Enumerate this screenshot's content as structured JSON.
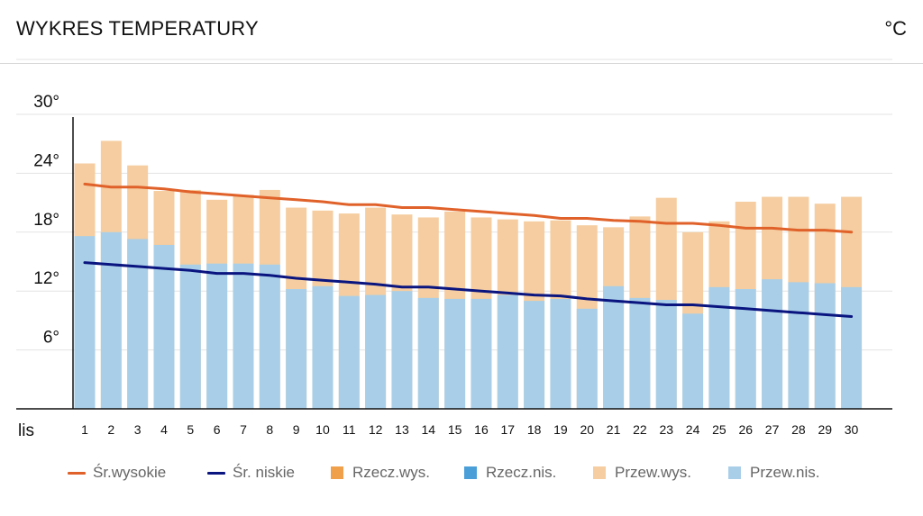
{
  "header": {
    "title": "WYKRES TEMPERATURY",
    "unit": "°C"
  },
  "chart_data": {
    "type": "bar",
    "x_label": "lis",
    "categories": [
      "1",
      "2",
      "3",
      "4",
      "5",
      "6",
      "7",
      "8",
      "9",
      "10",
      "11",
      "12",
      "13",
      "14",
      "15",
      "16",
      "17",
      "18",
      "19",
      "20",
      "21",
      "22",
      "23",
      "24",
      "25",
      "26",
      "27",
      "28",
      "29",
      "30"
    ],
    "ylim": [
      0,
      30
    ],
    "y_ticks": [
      {
        "value": 6,
        "label": "6°"
      },
      {
        "value": 12,
        "label": "12°"
      },
      {
        "value": 18,
        "label": "18°"
      },
      {
        "value": 24,
        "label": "24°"
      },
      {
        "value": 30,
        "label": "30°"
      }
    ],
    "grid": true,
    "legend_position": "bottom",
    "series": [
      {
        "name": "Przew.wys.",
        "kind": "bar",
        "color": "#f5cda0",
        "values": [
          25.0,
          27.3,
          24.8,
          22.2,
          22.3,
          21.3,
          21.8,
          22.3,
          20.5,
          20.2,
          19.9,
          20.5,
          19.8,
          19.5,
          20.1,
          19.5,
          19.3,
          19.1,
          19.2,
          18.7,
          18.5,
          19.6,
          21.5,
          18.0,
          19.1,
          21.1,
          21.6,
          21.6,
          20.9,
          21.6
        ]
      },
      {
        "name": "Przew.nis.",
        "kind": "bar",
        "color": "#a9cfe8",
        "values": [
          17.6,
          18.0,
          17.3,
          16.7,
          14.7,
          14.8,
          14.8,
          14.7,
          12.2,
          12.5,
          11.5,
          11.6,
          12.0,
          11.3,
          11.2,
          11.2,
          11.6,
          11.0,
          11.2,
          10.2,
          12.5,
          11.3,
          11.1,
          9.7,
          12.4,
          12.2,
          13.2,
          12.9,
          12.8,
          12.4
        ]
      },
      {
        "name": "Śr.wysokie",
        "kind": "line",
        "color": "#e0622a",
        "values": [
          22.9,
          22.6,
          22.6,
          22.4,
          22.1,
          21.9,
          21.7,
          21.5,
          21.3,
          21.1,
          20.8,
          20.8,
          20.5,
          20.5,
          20.3,
          20.1,
          19.9,
          19.7,
          19.4,
          19.4,
          19.2,
          19.1,
          18.9,
          18.9,
          18.7,
          18.4,
          18.4,
          18.2,
          18.2,
          18.0
        ]
      },
      {
        "name": "Śr. niskie",
        "kind": "line",
        "color": "#0a1580",
        "values": [
          14.9,
          14.7,
          14.5,
          14.3,
          14.1,
          13.8,
          13.8,
          13.6,
          13.3,
          13.1,
          12.9,
          12.7,
          12.4,
          12.4,
          12.2,
          12.0,
          11.8,
          11.6,
          11.5,
          11.2,
          11.0,
          10.8,
          10.6,
          10.6,
          10.4,
          10.2,
          10.0,
          9.8,
          9.6,
          9.4
        ]
      }
    ],
    "legend": [
      {
        "label": "Śr.wysokie",
        "kind": "line",
        "color": "#e0622a"
      },
      {
        "label": "Śr. niskie",
        "kind": "line",
        "color": "#0a1580"
      },
      {
        "label": "Rzecz.wys.",
        "kind": "box",
        "color": "#f0a04a"
      },
      {
        "label": "Rzecz.nis.",
        "kind": "box",
        "color": "#4a9fd8"
      },
      {
        "label": "Przew.wys.",
        "kind": "box",
        "color": "#f5cda0"
      },
      {
        "label": "Przew.nis.",
        "kind": "box",
        "color": "#a9cfe8"
      }
    ]
  }
}
